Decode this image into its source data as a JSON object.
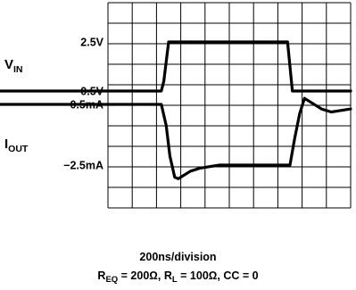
{
  "chart_data": {
    "type": "line",
    "traces": [
      {
        "axis_label": "V",
        "axis_label_sub": "IN",
        "levels": [
          "0.5V",
          "2.5V"
        ],
        "points": [
          [
            0,
            0.5
          ],
          [
            2.2,
            0.5
          ],
          [
            2.3,
            0.9
          ],
          [
            2.5,
            2.5
          ],
          [
            7.4,
            2.5
          ],
          [
            7.6,
            0.5
          ],
          [
            10,
            0.5
          ]
        ]
      },
      {
        "axis_label": "I",
        "axis_label_sub": "OUT",
        "levels": [
          "−0.5mA",
          "−2.5mA"
        ],
        "points": [
          [
            0,
            -0.5
          ],
          [
            2.2,
            -0.5
          ],
          [
            2.4,
            -1.2
          ],
          [
            2.55,
            -2.2
          ],
          [
            2.75,
            -2.9
          ],
          [
            2.9,
            -2.95
          ],
          [
            3.1,
            -2.85
          ],
          [
            3.4,
            -2.7
          ],
          [
            3.8,
            -2.6
          ],
          [
            4.2,
            -2.55
          ],
          [
            4.6,
            -2.5
          ],
          [
            7.5,
            -2.5
          ],
          [
            7.7,
            -1.6
          ],
          [
            7.9,
            -0.8
          ],
          [
            8.1,
            -0.3
          ],
          [
            8.4,
            -0.45
          ],
          [
            8.8,
            -0.65
          ],
          [
            9.2,
            -0.75
          ],
          [
            9.6,
            -0.7
          ],
          [
            10,
            -0.65
          ]
        ]
      }
    ],
    "x_divisions": 10,
    "y_divisions": 10,
    "grid": true,
    "xlabel": "200ns/division"
  },
  "conditions": {
    "req": {
      "main": "R",
      "sub": "EQ",
      "value": " = 200Ω, "
    },
    "rl": {
      "main": "R",
      "sub": "L",
      "value": " = 100Ω, CC = 0"
    }
  }
}
